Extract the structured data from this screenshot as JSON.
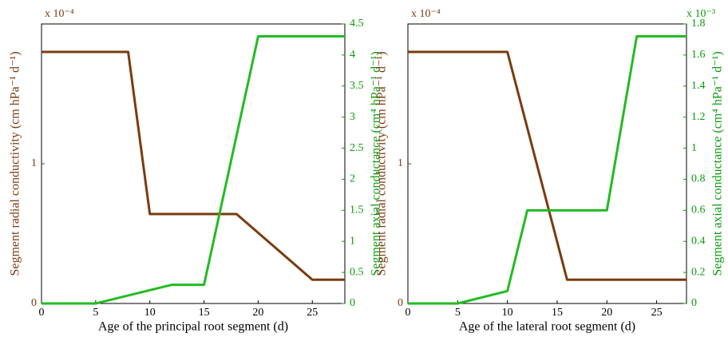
{
  "chart_data": [
    {
      "type": "line",
      "xlabel": "Age of the principal root segment (d)",
      "ylabel": "Segment radial conductivity (cm hPa⁻¹ d⁻¹)",
      "y2label": "Segment axial conductance (cm⁴ hPa⁻¹ d⁻¹)",
      "ymultiplier": "x 10⁻⁴",
      "xlim": [
        0,
        28
      ],
      "xticks": [
        0,
        5,
        10,
        15,
        20,
        25
      ],
      "ylim": [
        0,
        2
      ],
      "yticks": [
        0,
        1
      ],
      "y2lim": [
        0,
        4.5
      ],
      "y2ticks": [
        0,
        0.5,
        1,
        1.5,
        2,
        2.5,
        3,
        3.5,
        4,
        4.5
      ],
      "series": [
        {
          "color": "#7a3b10",
          "x": [
            0,
            8,
            10,
            18,
            25,
            28
          ],
          "values": [
            1.8,
            1.8,
            0.64,
            0.64,
            0.17,
            0.17
          ]
        },
        {
          "color": "#22bb22",
          "axis": "y2",
          "x": [
            0,
            5,
            12,
            15,
            20,
            28
          ],
          "values": [
            0,
            0,
            0.3,
            0.3,
            4.3,
            4.3
          ]
        }
      ]
    },
    {
      "type": "line",
      "xlabel": "Age of the lateral root segment (d)",
      "ylabel": "Segment radial conductivity (cm hPa⁻¹ d⁻¹)",
      "y2label": "Segment axial conductance (cm⁴ hPa⁻¹ d⁻¹)",
      "ymultiplier": "x 10⁻⁴",
      "y2multiplier": "x 10⁻³",
      "xlim": [
        0,
        28
      ],
      "xticks": [
        0,
        5,
        10,
        15,
        20,
        25
      ],
      "ylim": [
        0,
        2
      ],
      "yticks": [
        0,
        1
      ],
      "y2lim": [
        0,
        1.8
      ],
      "y2ticks": [
        0,
        0.2,
        0.4,
        0.6,
        0.8,
        1,
        1.2,
        1.4,
        1.6,
        1.8
      ],
      "series": [
        {
          "color": "#7a3b10",
          "x": [
            0,
            10,
            16,
            28
          ],
          "values": [
            1.8,
            1.8,
            0.17,
            0.17
          ]
        },
        {
          "color": "#22bb22",
          "axis": "y2",
          "x": [
            0,
            5,
            10,
            12,
            20,
            23,
            28
          ],
          "values": [
            0,
            0,
            0.08,
            0.6,
            0.6,
            1.72,
            1.72
          ]
        }
      ]
    }
  ]
}
